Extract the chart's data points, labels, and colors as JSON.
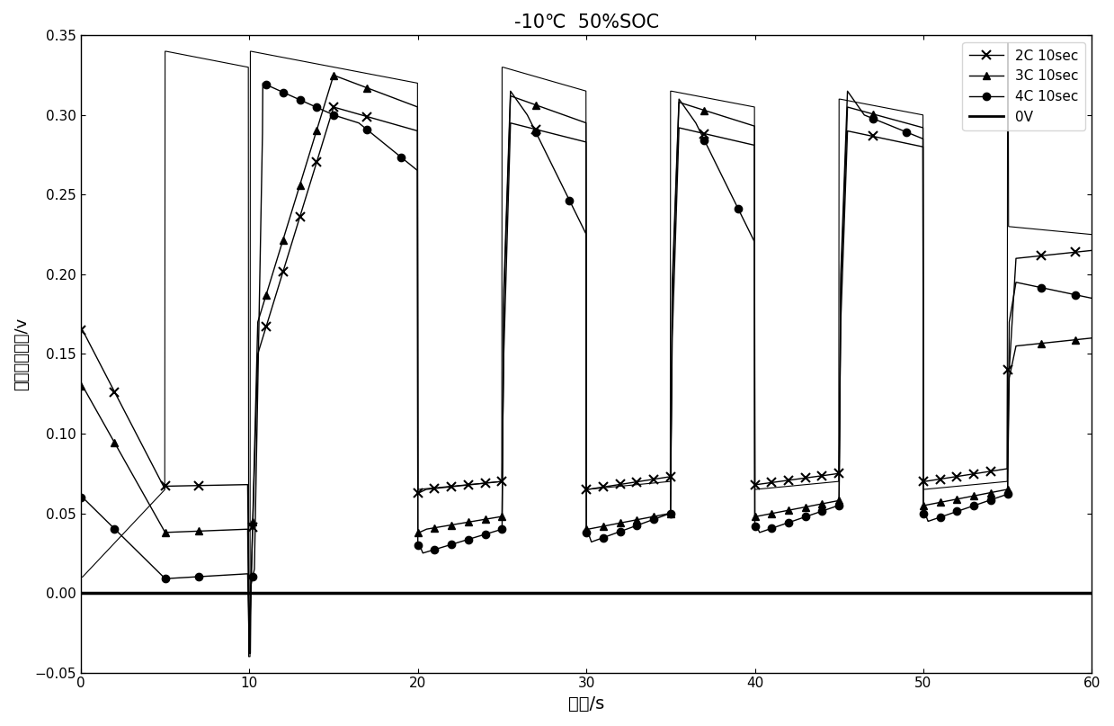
{
  "title": "-10℃  50%SOC",
  "xlabel": "时间/s",
  "ylabel": "负极参考电位/v",
  "xlim": [
    0,
    60
  ],
  "ylim": [
    -0.05,
    0.35
  ],
  "xticks": [
    0,
    10,
    20,
    30,
    40,
    50,
    60
  ],
  "yticks": [
    -0.05,
    0,
    0.05,
    0.1,
    0.15,
    0.2,
    0.25,
    0.3,
    0.35
  ],
  "legend": [
    "2C 10sec",
    "3C 10sec",
    "4C 10sec",
    "0V"
  ],
  "line_color": "black",
  "background": "white"
}
